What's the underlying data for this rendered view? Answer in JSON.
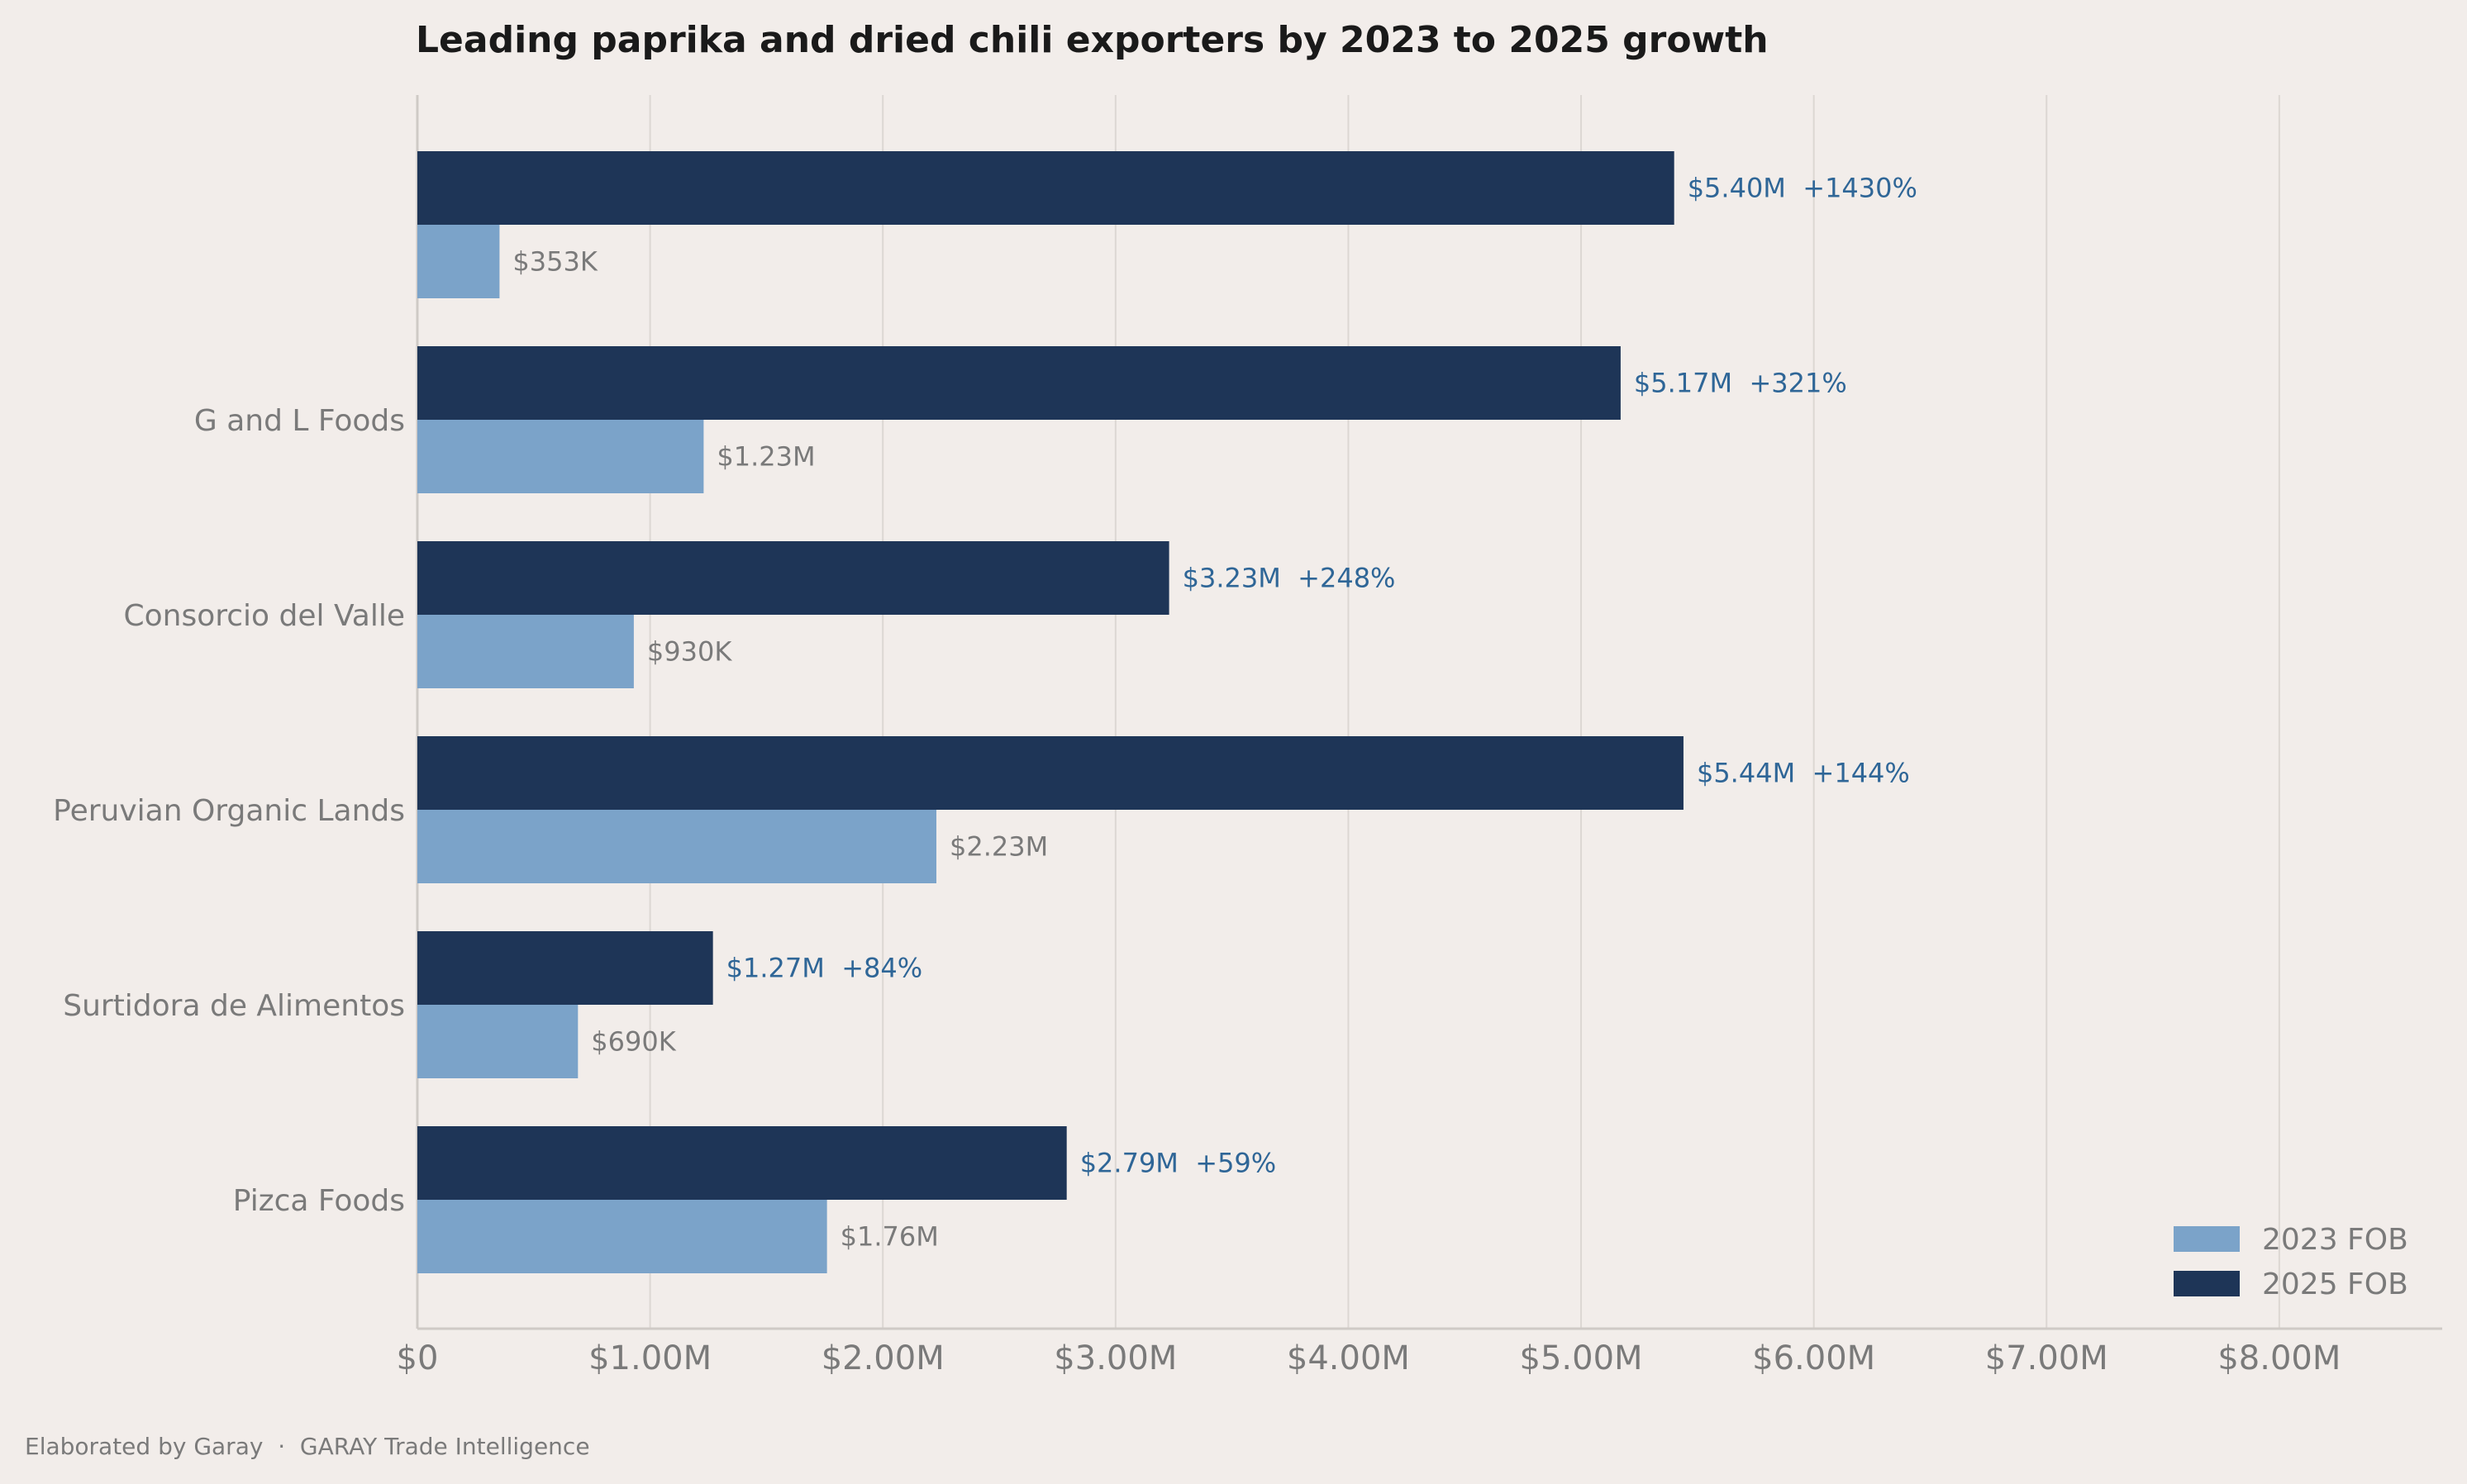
{
  "chart_data": {
    "type": "bar",
    "orientation": "horizontal",
    "title": "Leading paprika and dried chili exporters by 2023 to 2025 growth",
    "categories": [
      "",
      "G and L Foods",
      "Consorcio del Valle",
      "Peruvian Organic Lands",
      "Surtidora de Alimentos",
      "Pizca Foods"
    ],
    "series": [
      {
        "name": "2023 FOB",
        "color": "#7ba3c9",
        "values": [
          353000,
          1230000,
          930000,
          2230000,
          690000,
          1760000
        ],
        "labels": [
          "$353K",
          "$1.23M",
          "$930K",
          "$2.23M",
          "$690K",
          "$1.76M"
        ]
      },
      {
        "name": "2025 FOB",
        "color": "#1e3557",
        "values": [
          5400000,
          5170000,
          3230000,
          5440000,
          1270000,
          2790000
        ],
        "labels": [
          "$5.40M  +1430%",
          "$5.17M  +321%",
          "$3.23M  +248%",
          "$5.44M  +144%",
          "$1.27M  +84%",
          "$2.79M  +59%"
        ]
      }
    ],
    "xlim": [
      0,
      8700000
    ],
    "x_ticks": [
      0,
      1000000,
      2000000,
      3000000,
      4000000,
      5000000,
      6000000,
      7000000,
      8000000
    ],
    "x_tick_labels": [
      "$0",
      "$1.00M",
      "$2.00M",
      "$3.00M",
      "$4.00M",
      "$5.00M",
      "$6.00M",
      "$7.00M",
      "$8.00M"
    ],
    "grid": "vertical",
    "legend_position": "bottom-right"
  },
  "footer": "Elaborated by Garay  ·  GARAY Trade Intelligence"
}
